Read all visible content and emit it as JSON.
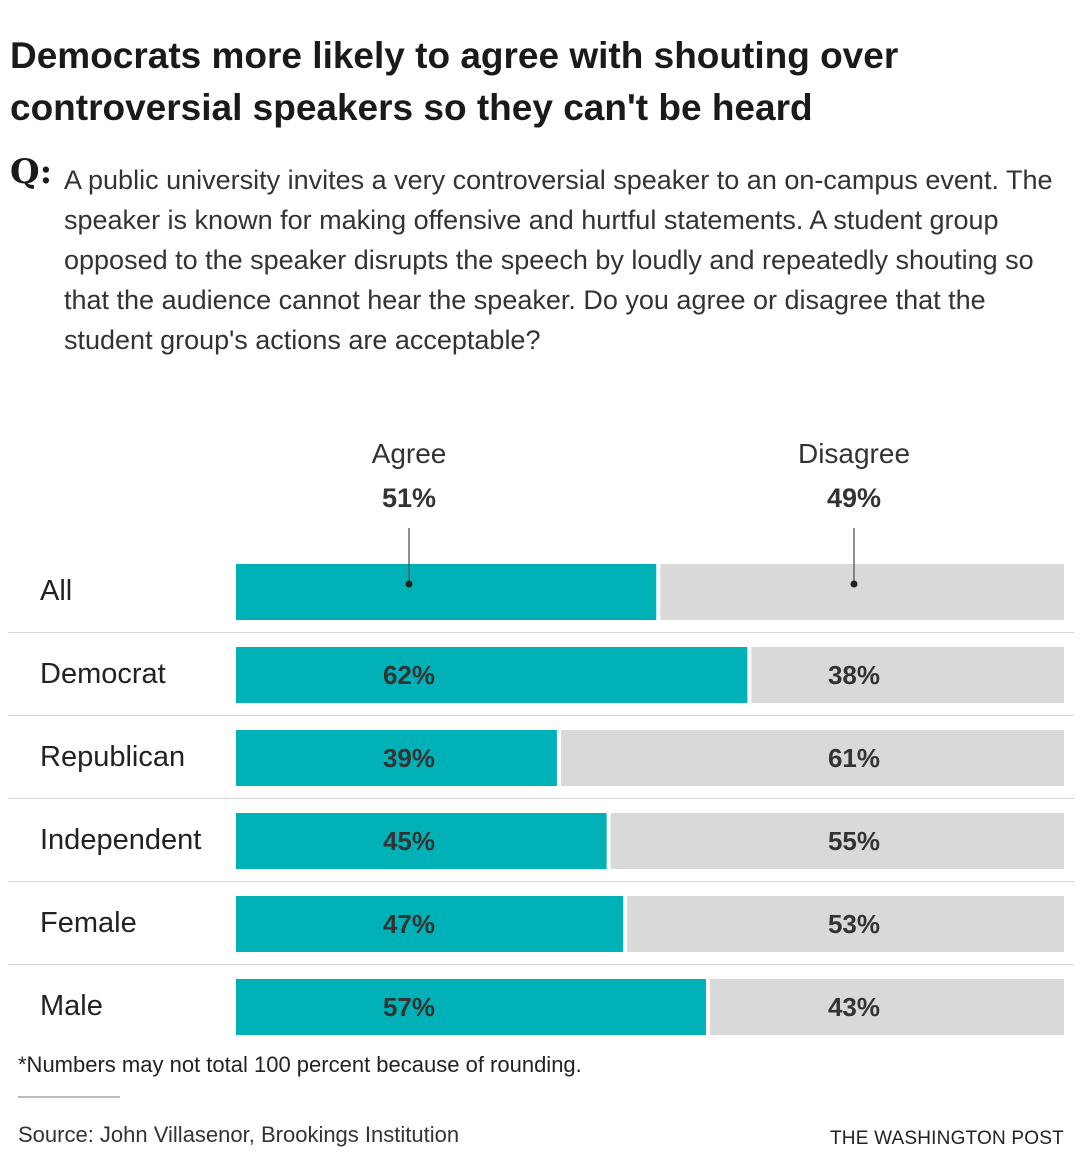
{
  "title": "Democrats more likely to agree with shouting over controversial speakers so they can't be heard",
  "question_label": "Q:",
  "question": "A public university invites a very controversial speaker to an on-campus event. The speaker is known for making offensive and hurtful statements. A student group opposed to the speaker disrupts the speech by loudly and repeatedly shouting so that the audience cannot hear the speaker. Do you agree or disagree that the student group's actions are acceptable?",
  "footnote": "*Numbers may not total 100 percent because of rounding.",
  "source": "Source: John Villasenor, Brookings Institution",
  "credit": "THE WASHINGTON POST",
  "colors": {
    "agree": "#00b2b8",
    "disagree": "#d9d9d9"
  },
  "chart_data": {
    "type": "bar",
    "orientation": "horizontal",
    "stacked": true,
    "title": "Democrats more likely to agree with shouting over controversial speakers so they can't be heard",
    "categories": [
      "All",
      "Democrat",
      "Republican",
      "Independent",
      "Female",
      "Male"
    ],
    "series": [
      {
        "name": "Agree",
        "values": [
          51,
          62,
          39,
          45,
          47,
          57
        ],
        "labels": [
          "51%",
          "62%",
          "39%",
          "45%",
          "47%",
          "57%"
        ]
      },
      {
        "name": "Disagree",
        "values": [
          49,
          38,
          61,
          55,
          53,
          43
        ],
        "labels": [
          "49%",
          "38%",
          "61%",
          "55%",
          "53%",
          "43%"
        ]
      }
    ],
    "xlim": [
      0,
      100
    ],
    "unit": "%"
  }
}
